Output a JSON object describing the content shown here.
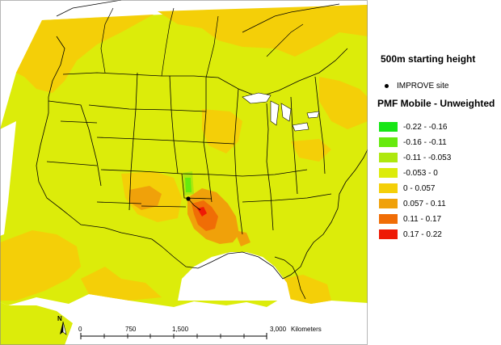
{
  "map": {
    "colors": {
      "ocean": "#ffffff",
      "land": "#dcec0a",
      "pos_low": "#f4cf08",
      "pos_mid": "#f0a10a",
      "pos_high": "#f06d06",
      "pos_max": "#ee1a06",
      "neg_low": "#aee80f",
      "neg_mid": "#66ea0e",
      "neg_max": "#16e615",
      "boundaries": "#000000"
    },
    "site_marker": "IMPROVE site"
  },
  "legend": {
    "heading": "500m starting height",
    "site_label": "IMPROVE site",
    "layer_title": "PMF Mobile - Unweighted",
    "classes": [
      {
        "label": "-0.22 - -0.16",
        "color": "#16e615"
      },
      {
        "label": "-0.16 - -0.11",
        "color": "#66ea0e"
      },
      {
        "label": "-0.11 - -0.053",
        "color": "#aee80f"
      },
      {
        "label": "-0.053 - 0",
        "color": "#dcec0a"
      },
      {
        "label": "0 - 0.057",
        "color": "#f4cf08"
      },
      {
        "label": "0.057 - 0.11",
        "color": "#f0a10a"
      },
      {
        "label": "0.11 - 0.17",
        "color": "#f06d06"
      },
      {
        "label": "0.17 - 0.22",
        "color": "#ee1a06"
      }
    ]
  },
  "north_arrow": {
    "label": "N"
  },
  "scale_bar": {
    "ticks": [
      "0",
      "750",
      "1,500",
      "3,000"
    ],
    "units": "Kilometers"
  }
}
